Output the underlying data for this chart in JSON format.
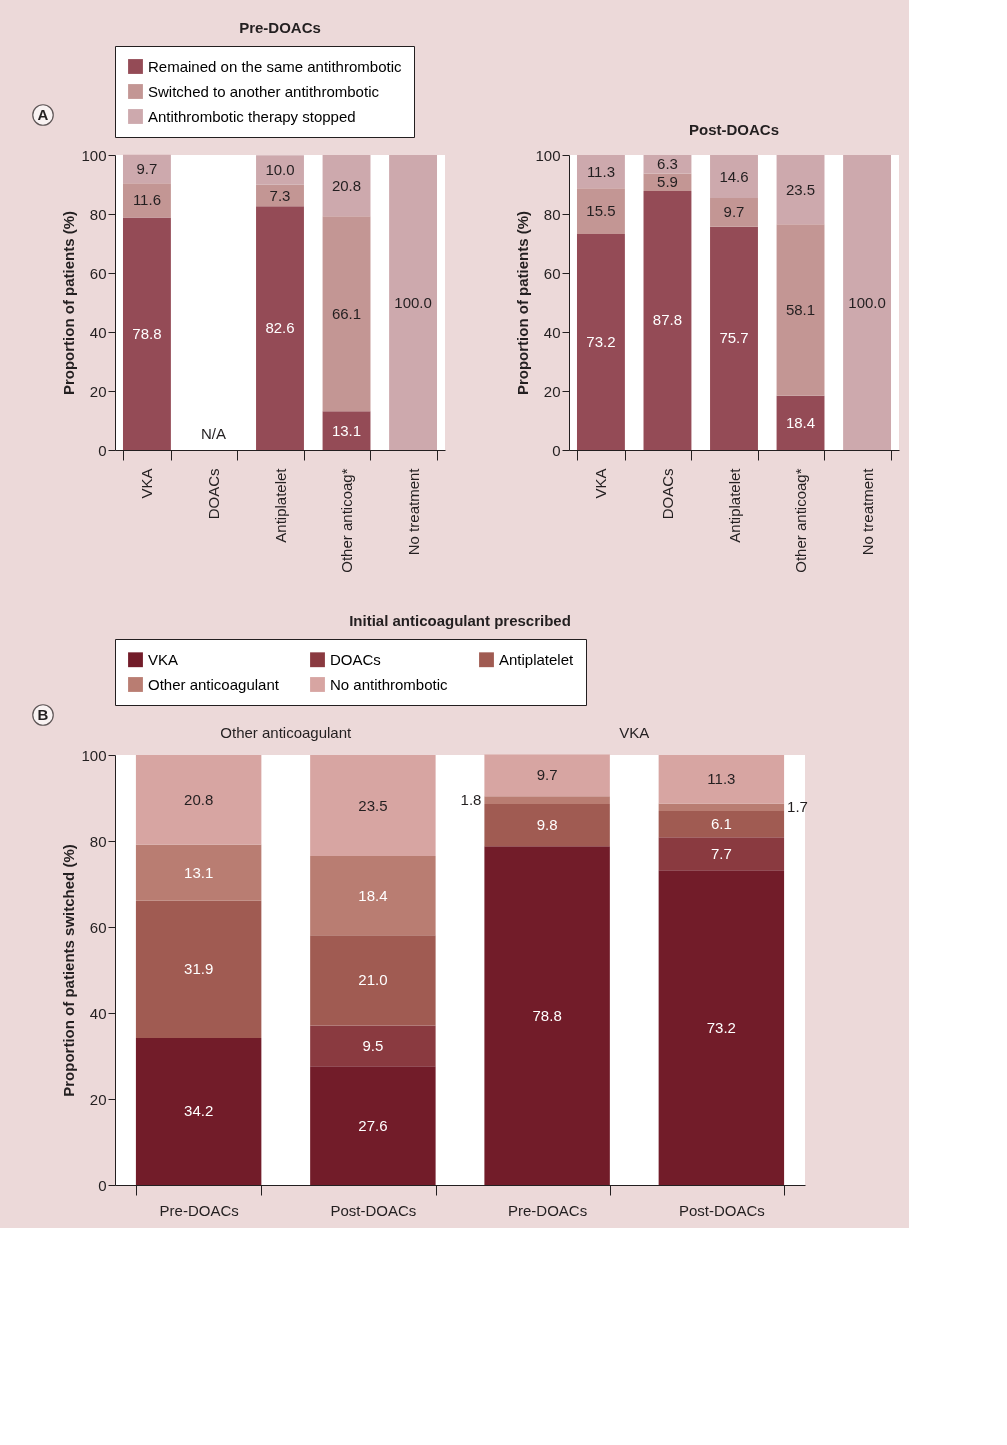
{
  "chart_data": [
    {
      "type": "bar",
      "stacked": true,
      "title": "Pre-DOACs",
      "ylabel": "Proportion of patients (%)",
      "categories": [
        "VKA",
        "DOACs",
        "Antiplatelet",
        "Other anticoag*",
        "No treatment"
      ],
      "series": [
        {
          "name": "Remained on the same antithrombotic",
          "color": "#944b56",
          "values": [
            78.8,
            null,
            82.6,
            13.1,
            null
          ],
          "value_labels": [
            "78.8",
            null,
            "82.6",
            "13.1",
            null
          ]
        },
        {
          "name": "Switched to another antithrombotic",
          "color": "#c39694",
          "values": [
            11.6,
            null,
            7.3,
            66.1,
            null
          ],
          "value_labels": [
            "11.6",
            null,
            "7.3",
            "66.1",
            null
          ]
        },
        {
          "name": "Antithrombotic therapy stopped",
          "color": "#cda9ad",
          "values": [
            9.7,
            null,
            10.0,
            20.8,
            100.0
          ],
          "value_labels": [
            "9.7",
            null,
            "10.0",
            "20.8",
            "100.0"
          ]
        }
      ],
      "ylim": [
        0,
        100
      ],
      "yticks": [
        0,
        20,
        40,
        60,
        80,
        100
      ],
      "legend": "top",
      "annotations": [
        "A",
        "N/A"
      ]
    },
    {
      "type": "bar",
      "stacked": true,
      "title": "Post-DOACs",
      "ylabel": "Proportion of patients (%)",
      "categories": [
        "VKA",
        "DOACs",
        "Antiplatelet",
        "Other anticoag*",
        "No treatment"
      ],
      "series": [
        {
          "color": "#944b56",
          "values": [
            73.2,
            87.8,
            75.7,
            18.4,
            null
          ],
          "value_labels": [
            "73.2",
            "87.8",
            "75.7",
            "18.4",
            null
          ]
        },
        {
          "color": "#c39694",
          "values": [
            15.5,
            5.9,
            9.7,
            58.1,
            null
          ],
          "value_labels": [
            "15.5",
            "5.9",
            "9.7",
            "58.1",
            null
          ]
        },
        {
          "color": "#cda9ad",
          "values": [
            11.3,
            6.3,
            14.6,
            23.5,
            100.0
          ],
          "value_labels": [
            "11.3",
            "6.3",
            "14.6",
            "23.5",
            "100.0"
          ]
        }
      ],
      "ylim": [
        0,
        100
      ],
      "yticks": [
        0,
        20,
        40,
        60,
        80,
        100
      ]
    },
    {
      "type": "bar",
      "stacked": true,
      "title": "Initial anticoagulant prescribed",
      "ylabel": "Proportion of patients switched (%)",
      "categories": [
        "Pre-DOACs",
        "Post-DOACs",
        "Pre-DOACs",
        "Post-DOACs"
      ],
      "series": [
        {
          "name": "VKA",
          "color": "#721c29",
          "values": [
            34.2,
            27.6,
            78.8,
            73.2
          ],
          "value_labels": [
            "34.2",
            "27.6",
            "78.8",
            "73.2"
          ]
        },
        {
          "name": "DOACs",
          "color": "#8a3a40",
          "values": [
            null,
            9.5,
            null,
            7.7
          ],
          "value_labels": [
            null,
            "9.5",
            null,
            "7.7"
          ]
        },
        {
          "name": "Antiplatelet",
          "color": "#a05b52",
          "values": [
            31.9,
            21.0,
            9.8,
            6.1
          ],
          "value_labels": [
            "31.9",
            "21.0",
            "9.8",
            "6.1"
          ]
        },
        {
          "name": "Other anticoagulant",
          "color": "#b97d72",
          "values": [
            13.1,
            18.4,
            1.8,
            1.7
          ],
          "value_labels": [
            "13.1",
            "18.4",
            "1.8",
            "1.7"
          ]
        },
        {
          "name": "No antithrombotic",
          "color": "#d7a5a2",
          "values": [
            20.8,
            23.5,
            9.7,
            11.3
          ],
          "value_labels": [
            "20.8",
            "23.5",
            "9.7",
            "11.3"
          ]
        }
      ],
      "ylim": [
        0,
        100
      ],
      "yticks": [
        0,
        20,
        40,
        60,
        80,
        100
      ],
      "legend": "top",
      "annotations": [
        "B",
        "Other anticoagulant",
        "VKA"
      ]
    }
  ]
}
